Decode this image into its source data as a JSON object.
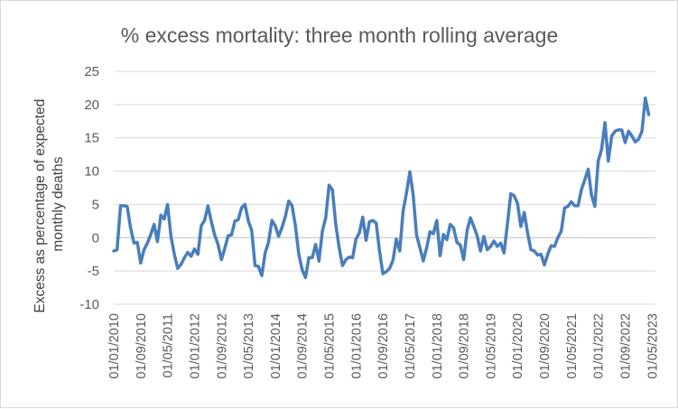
{
  "chart_data": {
    "type": "line",
    "title": "% excess mortality: three month rolling average",
    "xlabel": "",
    "ylabel": "Excess as percentage of expected monthly deaths",
    "ylim": [
      -10,
      25
    ],
    "yticks": [
      -10,
      -5,
      0,
      5,
      10,
      15,
      20,
      25
    ],
    "x_tick_labels": [
      "01/01/2010",
      "01/09/2010",
      "01/05/2011",
      "01/01/2012",
      "01/09/2012",
      "01/05/2013",
      "01/01/2014",
      "01/09/2014",
      "01/05/2015",
      "01/01/2016",
      "01/09/2016",
      "01/05/2017",
      "01/01/2018",
      "01/09/2018",
      "01/05/2019",
      "01/01/2020",
      "01/09/2020",
      "01/05/2021",
      "01/01/2022",
      "01/09/2022",
      "01/05/2023"
    ],
    "grid": "horizontal",
    "legend": "none",
    "color": "#4a7ebb",
    "x_start": "2010-01",
    "x_end": "2023-06",
    "series": [
      {
        "values": [
          -2,
          -1.8,
          4.8,
          4.8,
          4.7,
          1.5,
          -0.8,
          -0.7,
          -3.8,
          -1.8,
          -0.8,
          0.5,
          2,
          -0.6,
          3.4,
          2.8,
          5,
          0.2,
          -2.5,
          -4.6,
          -4,
          -3,
          -2.2,
          -2.8,
          -1.7,
          -2.5,
          1.8,
          2.6,
          4.8,
          2.4,
          0.4,
          -1,
          -3.3,
          -1.6,
          0.3,
          0.4,
          2.5,
          2.7,
          4.5,
          5,
          2.5,
          1.1,
          -4.2,
          -4.3,
          -5.7,
          -2.3,
          -0.7,
          2.6,
          1.8,
          0.2,
          1.5,
          3.2,
          5.5,
          4.8,
          1.8,
          -2.5,
          -4.8,
          -6,
          -3,
          -3,
          -1,
          -3.5,
          1,
          3,
          7.9,
          7.2,
          1.9,
          -1.5,
          -4.2,
          -3.3,
          -2.9,
          -3,
          -0.2,
          0.7,
          3.1,
          -0.4,
          2.4,
          2.6,
          2.2,
          -2,
          -5.4,
          -5.1,
          -4.6,
          -3.4,
          -0.2,
          -2,
          4,
          6.7,
          9.9,
          6.4,
          0.4,
          -1.5,
          -3.5,
          -1.5,
          0.9,
          0.6,
          2.6,
          -2.7,
          0.5,
          -0.3,
          2,
          1.5,
          -0.7,
          -1.1,
          -3.3,
          1,
          3,
          1.7,
          0.3,
          -2,
          0.2,
          -1.8,
          -1.3,
          -0.5,
          -1.3,
          -0.8,
          -2.3,
          2,
          6.6,
          6.3,
          5.2,
          1.7,
          3.8,
          0.7,
          -1.8,
          -2,
          -2.6,
          -2.5,
          -4.1,
          -2.5,
          -1.2,
          -1.3,
          0,
          1,
          4.5,
          4.7,
          5.4,
          4.8,
          4.8,
          7.2,
          8.7,
          10.3,
          6.4,
          4.7,
          11.5,
          13.3,
          17.3,
          11.5,
          15.3,
          16,
          16.2,
          16.2,
          14.3,
          16,
          15.3,
          14.4,
          14.8,
          16,
          21,
          18.5
        ]
      }
    ]
  }
}
